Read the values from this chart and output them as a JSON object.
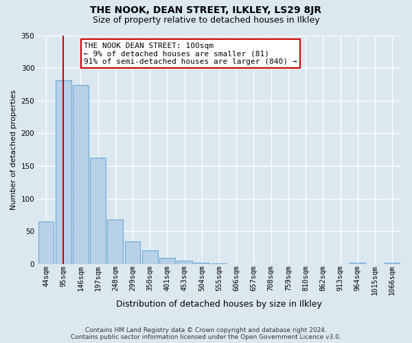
{
  "title": "THE NOOK, DEAN STREET, ILKLEY, LS29 8JR",
  "subtitle": "Size of property relative to detached houses in Ilkley",
  "xlabel": "Distribution of detached houses by size in Ilkley",
  "ylabel": "Number of detached properties",
  "categories": [
    "44sqm",
    "95sqm",
    "146sqm",
    "197sqm",
    "248sqm",
    "299sqm",
    "350sqm",
    "401sqm",
    "453sqm",
    "504sqm",
    "555sqm",
    "606sqm",
    "657sqm",
    "708sqm",
    "759sqm",
    "810sqm",
    "862sqm",
    "913sqm",
    "964sqm",
    "1015sqm",
    "1066sqm"
  ],
  "values": [
    65,
    281,
    274,
    163,
    68,
    35,
    21,
    9,
    5,
    2,
    1,
    0,
    0,
    0,
    0,
    0,
    0,
    0,
    2,
    0,
    2
  ],
  "bar_color": "#b8d0e8",
  "bar_edge_color": "#6aaad4",
  "vline_x_index": 1,
  "vline_color": "#cc0000",
  "ylim": [
    0,
    350
  ],
  "yticks": [
    0,
    50,
    100,
    150,
    200,
    250,
    300,
    350
  ],
  "annotation_title": "THE NOOK DEAN STREET: 100sqm",
  "annotation_line1": "← 9% of detached houses are smaller (81)",
  "annotation_line2": "91% of semi-detached houses are larger (840) →",
  "annotation_box_facecolor": "#ffffff",
  "annotation_box_edgecolor": "#cc0000",
  "footer_line1": "Contains HM Land Registry data © Crown copyright and database right 2024.",
  "footer_line2": "Contains public sector information licensed under the Open Government Licence v3.0.",
  "bg_color": "#dce8f0",
  "grid_color": "#ffffff",
  "title_fontsize": 10,
  "subtitle_fontsize": 9,
  "ylabel_fontsize": 8,
  "xlabel_fontsize": 9,
  "tick_fontsize": 7.5,
  "footer_fontsize": 6.5,
  "ann_fontsize": 8
}
